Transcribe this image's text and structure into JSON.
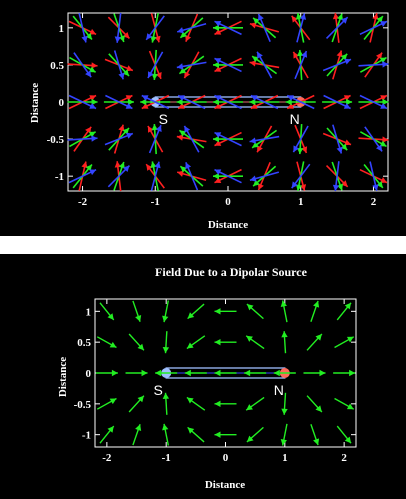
{
  "chart_data": [
    {
      "type": "vector-field",
      "title": "",
      "xlabel": "Distance",
      "ylabel": "Distance",
      "xlim": [
        -2.2,
        2.2
      ],
      "ylim": [
        -1.2,
        1.2
      ],
      "xticks": [
        -2,
        -1,
        0,
        1,
        2
      ],
      "yticks": [
        1,
        0.5,
        0,
        -0.5,
        -1
      ],
      "xtick_labels": [
        "-2",
        "-1",
        "0",
        "1",
        "2"
      ],
      "ytick_labels": [
        "1",
        "0.5",
        "0",
        "-0.5",
        "-1"
      ],
      "grid_x": [
        -2,
        -1.5,
        -1,
        -0.5,
        0,
        0.5,
        1,
        1.5,
        2
      ],
      "grid_y": [
        1,
        0.5,
        0,
        -0.5,
        -1
      ],
      "arrow_colors": [
        "#ff2020",
        "#22ee22",
        "#3344ff"
      ],
      "arrow_series": [
        "red",
        "green",
        "blue"
      ],
      "magnet": {
        "south_x": -1,
        "north_x": 1,
        "y": 0,
        "south_label": "S",
        "north_label": "N",
        "south_color": "#9fbfff",
        "north_color": "#ff6a5a",
        "outline_color": "#9fbfff",
        "rod_line_color": "#e07070"
      },
      "grid_on": false,
      "legend": "none"
    },
    {
      "type": "vector-field",
      "title": "Field Due to a Dipolar Source",
      "xlabel": "Distance",
      "ylabel": "Distance",
      "xlim": [
        -2.2,
        2.2
      ],
      "ylim": [
        -1.2,
        1.2
      ],
      "xticks": [
        -2,
        -1,
        0,
        1,
        2
      ],
      "yticks": [
        1,
        0.5,
        0,
        -0.5,
        -1
      ],
      "xtick_labels": [
        "-2",
        "-1",
        "0",
        "1",
        "2"
      ],
      "ytick_labels": [
        "1",
        "0.5",
        "0",
        "-0.5",
        "-1"
      ],
      "grid_x": [
        -2,
        -1.5,
        -1,
        -0.5,
        0,
        0.5,
        1,
        1.5,
        2
      ],
      "grid_y": [
        1,
        0.5,
        0,
        -0.5,
        -1
      ],
      "arrow_colors": [
        "#22ee22"
      ],
      "arrow_series": [
        "field"
      ],
      "magnet": {
        "south_x": -1,
        "north_x": 1,
        "y": 0,
        "south_label": "S",
        "north_label": "N",
        "south_color": "#9fbfff",
        "north_color": "#ff6a5a",
        "outline_color": "#9fbfff",
        "rod_line_color": "#3344ff"
      },
      "grid_on": false,
      "legend": "none"
    }
  ]
}
